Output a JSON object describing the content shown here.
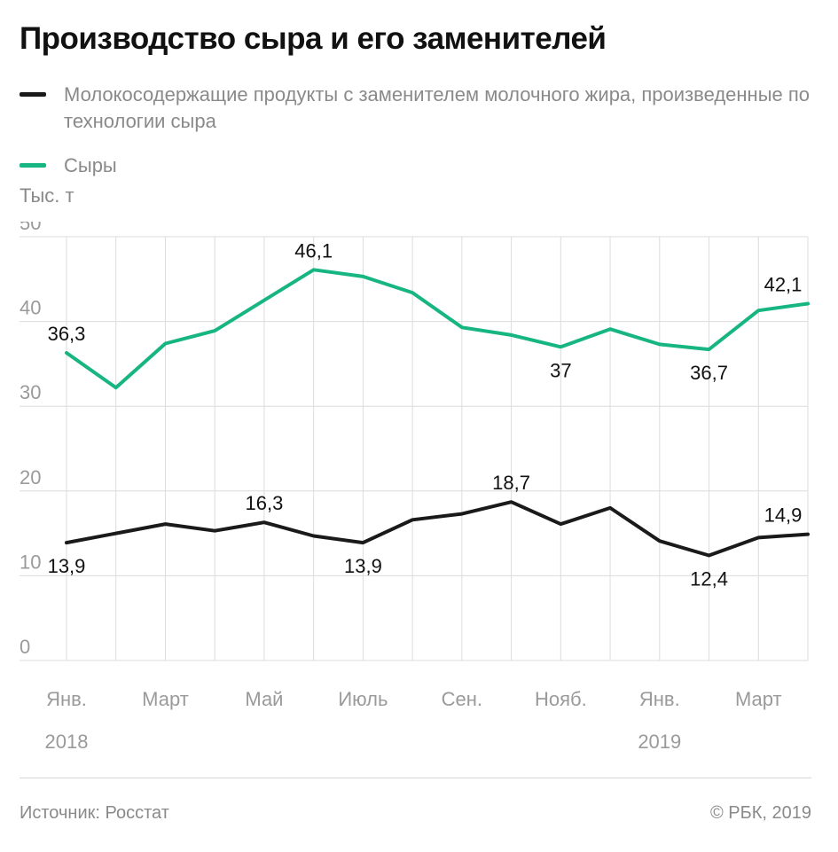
{
  "title": "Производство сыра и его заменителей",
  "legend": [
    {
      "label": "Молокосодержащие продукты с заменителем молочного жира, произведенные по технологии сыра",
      "color": "#1a1a1a"
    },
    {
      "label": "Сыры",
      "color": "#16b582"
    }
  ],
  "unit": "Тыс. т",
  "footer": {
    "source": "Источник: Росстат",
    "copyright": "© РБК, 2019"
  },
  "chart_data": {
    "type": "line",
    "x": [
      "2018-01",
      "2018-02",
      "2018-03",
      "2018-04",
      "2018-05",
      "2018-06",
      "2018-07",
      "2018-08",
      "2018-09",
      "2018-10",
      "2018-11",
      "2018-12",
      "2019-01",
      "2019-02",
      "2019-03",
      "2019-04"
    ],
    "x_tick_labels": [
      {
        "index": 0,
        "label": "Янв."
      },
      {
        "index": 2,
        "label": "Март"
      },
      {
        "index": 4,
        "label": "Май"
      },
      {
        "index": 6,
        "label": "Июль"
      },
      {
        "index": 8,
        "label": "Сен."
      },
      {
        "index": 10,
        "label": "Нояб."
      },
      {
        "index": 12,
        "label": "Янв."
      },
      {
        "index": 14,
        "label": "Март"
      }
    ],
    "year_labels": [
      {
        "index": 0,
        "label": "2018"
      },
      {
        "index": 12,
        "label": "2019"
      }
    ],
    "ylim": [
      0,
      50
    ],
    "yticks": [
      0,
      10,
      20,
      30,
      40,
      50
    ],
    "grid": "vertical",
    "series": [
      {
        "name": "Сыры",
        "color": "#16b582",
        "values": [
          36.3,
          32.2,
          37.4,
          38.9,
          42.5,
          46.1,
          45.3,
          43.4,
          39.3,
          38.4,
          37.0,
          39.1,
          37.3,
          36.7,
          41.3,
          42.1
        ],
        "labels": [
          {
            "index": 0,
            "text": "36,3",
            "pos": "above"
          },
          {
            "index": 5,
            "text": "46,1",
            "pos": "above"
          },
          {
            "index": 10,
            "text": "37",
            "pos": "below"
          },
          {
            "index": 13,
            "text": "36,7",
            "pos": "below"
          },
          {
            "index": 15,
            "text": "42,1",
            "pos": "above"
          }
        ]
      },
      {
        "name": "Молокосодержащие продукты с заменителем молочного жира, произведенные по технологии сыра",
        "color": "#1a1a1a",
        "values": [
          13.9,
          15.0,
          16.1,
          15.3,
          16.3,
          14.7,
          13.9,
          16.6,
          17.3,
          18.7,
          16.1,
          18.0,
          14.1,
          12.4,
          14.5,
          14.9
        ],
        "labels": [
          {
            "index": 0,
            "text": "13,9",
            "pos": "below"
          },
          {
            "index": 4,
            "text": "16,3",
            "pos": "above"
          },
          {
            "index": 6,
            "text": "13,9",
            "pos": "below"
          },
          {
            "index": 9,
            "text": "18,7",
            "pos": "above"
          },
          {
            "index": 13,
            "text": "12,4",
            "pos": "below"
          },
          {
            "index": 15,
            "text": "14,9",
            "pos": "above"
          }
        ]
      }
    ]
  }
}
